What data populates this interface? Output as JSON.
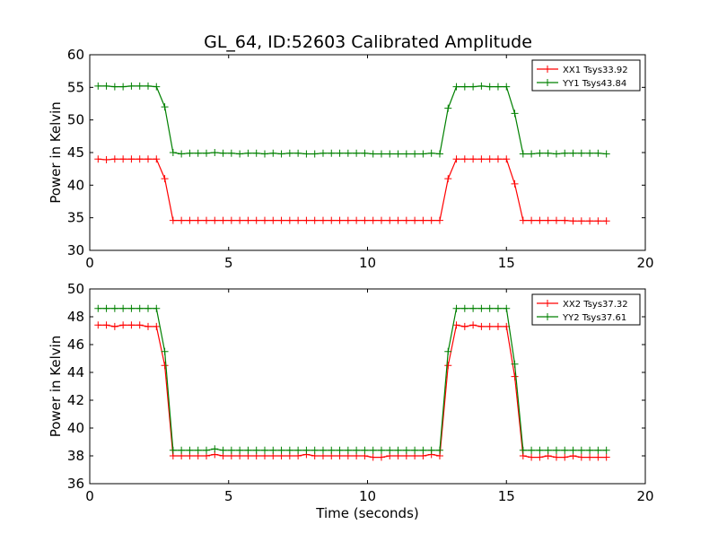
{
  "chart_data": [
    {
      "type": "line",
      "title": "GL_64, ID:52603 Calibrated Amplitude",
      "xlabel": "",
      "ylabel": "Power in Kelvin",
      "xlim": [
        0,
        20
      ],
      "ylim": [
        30,
        60
      ],
      "xticks": [
        0,
        5,
        10,
        15,
        20
      ],
      "yticks": [
        30,
        35,
        40,
        45,
        50,
        55,
        60
      ],
      "grid": false,
      "legend_position": "top-right",
      "x": [
        0.3,
        0.6,
        0.9,
        1.2,
        1.5,
        1.8,
        2.1,
        2.4,
        2.7,
        3.0,
        3.3,
        3.6,
        3.9,
        4.2,
        4.5,
        4.8,
        5.1,
        5.4,
        5.7,
        6.0,
        6.3,
        6.6,
        6.9,
        7.2,
        7.5,
        7.8,
        8.1,
        8.4,
        8.7,
        9.0,
        9.3,
        9.6,
        9.9,
        10.2,
        10.5,
        10.8,
        11.1,
        11.4,
        11.7,
        12.0,
        12.3,
        12.6,
        12.9,
        13.2,
        13.5,
        13.8,
        14.1,
        14.4,
        14.7,
        15.0,
        15.3,
        15.6,
        15.9,
        16.2,
        16.5,
        16.8,
        17.1,
        17.4,
        17.7,
        18.0,
        18.3,
        18.6
      ],
      "series": [
        {
          "name": "XX1 Tsys33.92",
          "color": "#ff0000",
          "values": [
            44.0,
            43.9,
            44.0,
            44.0,
            44.0,
            44.0,
            44.0,
            44.0,
            41.0,
            34.6,
            34.6,
            34.6,
            34.6,
            34.6,
            34.6,
            34.6,
            34.6,
            34.6,
            34.6,
            34.6,
            34.6,
            34.6,
            34.6,
            34.6,
            34.6,
            34.6,
            34.6,
            34.6,
            34.6,
            34.6,
            34.6,
            34.6,
            34.6,
            34.6,
            34.6,
            34.6,
            34.6,
            34.6,
            34.6,
            34.6,
            34.6,
            34.6,
            41.0,
            44.0,
            44.0,
            44.0,
            44.0,
            44.0,
            44.0,
            44.0,
            40.2,
            34.6,
            34.6,
            34.6,
            34.6,
            34.6,
            34.6,
            34.5,
            34.5,
            34.5,
            34.5,
            34.5
          ]
        },
        {
          "name": "YY1 Tsys43.84",
          "color": "#008000",
          "values": [
            55.2,
            55.2,
            55.1,
            55.1,
            55.2,
            55.2,
            55.2,
            55.1,
            52.0,
            45.0,
            44.8,
            44.9,
            44.9,
            44.9,
            45.0,
            44.9,
            44.9,
            44.8,
            44.9,
            44.9,
            44.8,
            44.9,
            44.8,
            44.9,
            44.9,
            44.8,
            44.8,
            44.9,
            44.9,
            44.9,
            44.9,
            44.9,
            44.9,
            44.8,
            44.8,
            44.8,
            44.8,
            44.8,
            44.8,
            44.8,
            44.9,
            44.8,
            51.8,
            55.1,
            55.1,
            55.1,
            55.2,
            55.1,
            55.1,
            55.1,
            51.0,
            44.8,
            44.8,
            44.9,
            44.9,
            44.8,
            44.9,
            44.9,
            44.9,
            44.9,
            44.9,
            44.8
          ]
        }
      ]
    },
    {
      "type": "line",
      "title": "",
      "xlabel": "Time (seconds)",
      "ylabel": "Power in Kelvin",
      "xlim": [
        0,
        20
      ],
      "ylim": [
        36,
        50
      ],
      "xticks": [
        0,
        5,
        10,
        15,
        20
      ],
      "yticks": [
        36,
        38,
        40,
        42,
        44,
        46,
        48,
        50
      ],
      "grid": false,
      "legend_position": "top-right",
      "x": [
        0.3,
        0.6,
        0.9,
        1.2,
        1.5,
        1.8,
        2.1,
        2.4,
        2.7,
        3.0,
        3.3,
        3.6,
        3.9,
        4.2,
        4.5,
        4.8,
        5.1,
        5.4,
        5.7,
        6.0,
        6.3,
        6.6,
        6.9,
        7.2,
        7.5,
        7.8,
        8.1,
        8.4,
        8.7,
        9.0,
        9.3,
        9.6,
        9.9,
        10.2,
        10.5,
        10.8,
        11.1,
        11.4,
        11.7,
        12.0,
        12.3,
        12.6,
        12.9,
        13.2,
        13.5,
        13.8,
        14.1,
        14.4,
        14.7,
        15.0,
        15.3,
        15.6,
        15.9,
        16.2,
        16.5,
        16.8,
        17.1,
        17.4,
        17.7,
        18.0,
        18.3,
        18.6
      ],
      "series": [
        {
          "name": "XX2 Tsys37.32",
          "color": "#ff0000",
          "values": [
            47.4,
            47.4,
            47.3,
            47.4,
            47.4,
            47.4,
            47.3,
            47.3,
            44.5,
            38.0,
            38.0,
            38.0,
            38.0,
            38.0,
            38.1,
            38.0,
            38.0,
            38.0,
            38.0,
            38.0,
            38.0,
            38.0,
            38.0,
            38.0,
            38.0,
            38.1,
            38.0,
            38.0,
            38.0,
            38.0,
            38.0,
            38.0,
            38.0,
            37.9,
            37.9,
            38.0,
            38.0,
            38.0,
            38.0,
            38.0,
            38.1,
            38.0,
            44.5,
            47.4,
            47.3,
            47.4,
            47.3,
            47.3,
            47.3,
            47.3,
            43.7,
            38.0,
            37.9,
            37.9,
            38.0,
            37.9,
            37.9,
            38.0,
            37.9,
            37.9,
            37.9,
            37.9
          ]
        },
        {
          "name": "YY2 Tsys37.61",
          "color": "#008000",
          "values": [
            48.6,
            48.6,
            48.6,
            48.6,
            48.6,
            48.6,
            48.6,
            48.6,
            45.5,
            38.4,
            38.4,
            38.4,
            38.4,
            38.4,
            38.5,
            38.4,
            38.4,
            38.4,
            38.4,
            38.4,
            38.4,
            38.4,
            38.4,
            38.4,
            38.4,
            38.4,
            38.4,
            38.4,
            38.4,
            38.4,
            38.4,
            38.4,
            38.4,
            38.4,
            38.4,
            38.4,
            38.4,
            38.4,
            38.4,
            38.4,
            38.4,
            38.4,
            45.5,
            48.6,
            48.6,
            48.6,
            48.6,
            48.6,
            48.6,
            48.6,
            44.6,
            38.4,
            38.4,
            38.4,
            38.4,
            38.4,
            38.4,
            38.4,
            38.4,
            38.4,
            38.4,
            38.4
          ]
        }
      ]
    }
  ]
}
